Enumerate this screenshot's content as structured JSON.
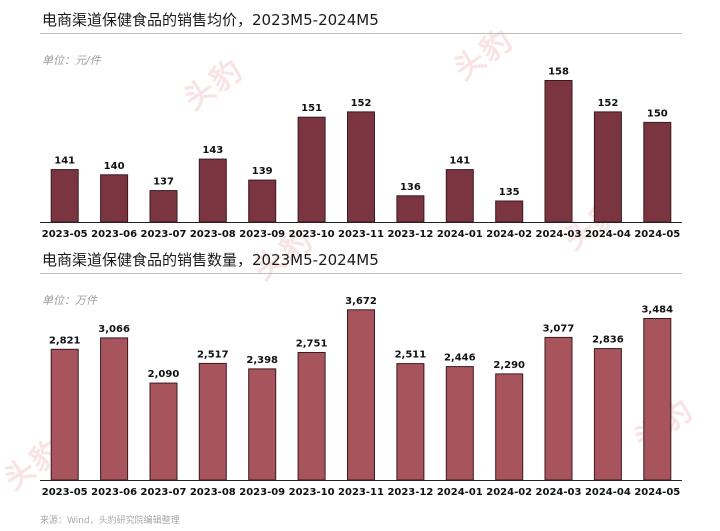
{
  "watermark": "头豹",
  "chart_data": [
    {
      "type": "bar",
      "title": "电商渠道保健食品的销售均价，2023M5-2024M5",
      "unit_label": "单位：元/件",
      "categories": [
        "2023-05",
        "2023-06",
        "2023-07",
        "2023-08",
        "2023-09",
        "2023-10",
        "2023-11",
        "2023-12",
        "2024-01",
        "2024-02",
        "2024-03",
        "2024-04",
        "2024-05"
      ],
      "values": [
        141,
        140,
        137,
        143,
        139,
        151,
        152,
        136,
        141,
        135,
        158,
        152,
        150
      ],
      "data_labels": [
        "141",
        "140",
        "137",
        "143",
        "139",
        "151",
        "152",
        "136",
        "141",
        "135",
        "158",
        "152",
        "150"
      ],
      "ylim": [
        131,
        160
      ],
      "grid": false,
      "bar_color": "#7b3540",
      "bar_edge_color": "#3a1a1e"
    },
    {
      "type": "bar",
      "title": "电商渠道保健食品的销售数量，2023M5-2024M5",
      "unit_label": "单位：万件",
      "categories": [
        "2023-05",
        "2023-06",
        "2023-07",
        "2023-08",
        "2023-09",
        "2023-10",
        "2023-11",
        "2023-12",
        "2024-01",
        "2024-02",
        "2024-03",
        "2024-04",
        "2024-05"
      ],
      "values": [
        2821,
        3066,
        2090,
        2517,
        2398,
        2751,
        3672,
        2511,
        2446,
        2290,
        3077,
        2836,
        3484
      ],
      "data_labels": [
        "2,821",
        "3,066",
        "2,090",
        "2,517",
        "2,398",
        "2,751",
        "3,672",
        "2,511",
        "2,446",
        "2,290",
        "3,077",
        "2,836",
        "3,484"
      ],
      "ylim": [
        0,
        4100
      ],
      "grid": false,
      "bar_color": "#a8545c",
      "bar_edge_color": "#3a1a1e"
    }
  ],
  "source": "来源：Wind，头豹研究院编辑整理"
}
